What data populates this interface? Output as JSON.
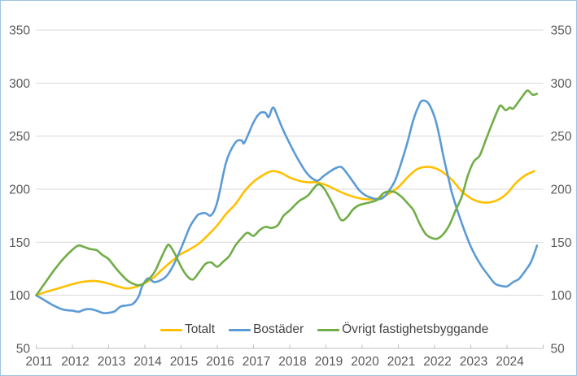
{
  "chart_data": {
    "type": "line",
    "title": "",
    "grid": true,
    "legend_position": "bottom",
    "y_axis": {
      "min": 50,
      "max": 350,
      "tick_step": 50,
      "ticks": [
        50,
        100,
        150,
        200,
        250,
        300,
        350
      ],
      "sides": [
        "left",
        "right"
      ]
    },
    "x_axis": {
      "start_year": 2011,
      "end_year": 2025,
      "tick_years": [
        2011,
        2012,
        2013,
        2014,
        2015,
        2016,
        2017,
        2018,
        2019,
        2020,
        2021,
        2022,
        2023,
        2024
      ]
    },
    "series": [
      {
        "name": "Totalt",
        "color": "#FFC000",
        "points": [
          [
            2011.0,
            100
          ],
          [
            2011.25,
            103
          ],
          [
            2011.5,
            105.5
          ],
          [
            2011.75,
            108
          ],
          [
            2012.0,
            110.5
          ],
          [
            2012.25,
            112.5
          ],
          [
            2012.5,
            113.5
          ],
          [
            2012.75,
            113
          ],
          [
            2013.0,
            111
          ],
          [
            2013.25,
            108.5
          ],
          [
            2013.5,
            106.5
          ],
          [
            2013.75,
            108
          ],
          [
            2014.0,
            111.5
          ],
          [
            2014.25,
            117
          ],
          [
            2014.5,
            125
          ],
          [
            2014.75,
            132.5
          ],
          [
            2015.0,
            139
          ],
          [
            2015.25,
            143.5
          ],
          [
            2015.5,
            149
          ],
          [
            2015.75,
            157
          ],
          [
            2016.0,
            166
          ],
          [
            2016.25,
            177
          ],
          [
            2016.5,
            186
          ],
          [
            2016.75,
            198
          ],
          [
            2017.0,
            207
          ],
          [
            2017.25,
            213
          ],
          [
            2017.5,
            217
          ],
          [
            2017.75,
            215.5
          ],
          [
            2018.0,
            211
          ],
          [
            2018.25,
            208
          ],
          [
            2018.5,
            206.5
          ],
          [
            2018.75,
            206.5
          ],
          [
            2019.0,
            204
          ],
          [
            2019.25,
            200
          ],
          [
            2019.5,
            196
          ],
          [
            2019.75,
            193
          ],
          [
            2020.0,
            191
          ],
          [
            2020.25,
            190.5
          ],
          [
            2020.5,
            192
          ],
          [
            2020.75,
            196
          ],
          [
            2021.0,
            202
          ],
          [
            2021.25,
            211
          ],
          [
            2021.5,
            218.5
          ],
          [
            2021.75,
            221
          ],
          [
            2022.0,
            220
          ],
          [
            2022.25,
            215.5
          ],
          [
            2022.5,
            208
          ],
          [
            2022.75,
            198
          ],
          [
            2023.0,
            191.5
          ],
          [
            2023.25,
            188
          ],
          [
            2023.5,
            187.5
          ],
          [
            2023.75,
            190
          ],
          [
            2024.0,
            196
          ],
          [
            2024.25,
            206
          ],
          [
            2024.5,
            213
          ],
          [
            2024.75,
            217
          ]
        ]
      },
      {
        "name": "Bostäder",
        "color": "#5B9BD5",
        "points": [
          [
            2011.0,
            100
          ],
          [
            2011.25,
            95
          ],
          [
            2011.5,
            90
          ],
          [
            2011.75,
            86.5
          ],
          [
            2012.0,
            85.5
          ],
          [
            2012.17,
            84.5
          ],
          [
            2012.33,
            86.5
          ],
          [
            2012.5,
            87
          ],
          [
            2012.67,
            85.5
          ],
          [
            2012.83,
            83.5
          ],
          [
            2013.0,
            83.5
          ],
          [
            2013.17,
            85
          ],
          [
            2013.33,
            89.5
          ],
          [
            2013.5,
            90.5
          ],
          [
            2013.67,
            92
          ],
          [
            2013.83,
            99
          ],
          [
            2013.92,
            108
          ],
          [
            2014.08,
            116
          ],
          [
            2014.25,
            112.5
          ],
          [
            2014.42,
            114
          ],
          [
            2014.58,
            117.5
          ],
          [
            2014.75,
            126
          ],
          [
            2014.92,
            138
          ],
          [
            2015.08,
            151
          ],
          [
            2015.25,
            165
          ],
          [
            2015.42,
            174
          ],
          [
            2015.5,
            176.5
          ],
          [
            2015.67,
            177.5
          ],
          [
            2015.83,
            175.5
          ],
          [
            2016.0,
            188
          ],
          [
            2016.25,
            226
          ],
          [
            2016.5,
            244
          ],
          [
            2016.67,
            246
          ],
          [
            2016.75,
            244
          ],
          [
            2017.0,
            263
          ],
          [
            2017.17,
            271.5
          ],
          [
            2017.33,
            272
          ],
          [
            2017.42,
            268
          ],
          [
            2017.54,
            277
          ],
          [
            2017.67,
            268
          ],
          [
            2017.79,
            258
          ],
          [
            2018.0,
            243
          ],
          [
            2018.25,
            227
          ],
          [
            2018.5,
            214
          ],
          [
            2018.75,
            208
          ],
          [
            2018.92,
            212
          ],
          [
            2019.08,
            216
          ],
          [
            2019.25,
            219.5
          ],
          [
            2019.42,
            221
          ],
          [
            2019.58,
            215
          ],
          [
            2019.75,
            207
          ],
          [
            2019.92,
            199
          ],
          [
            2020.08,
            194.5
          ],
          [
            2020.25,
            192
          ],
          [
            2020.42,
            190.5
          ],
          [
            2020.58,
            192
          ],
          [
            2020.75,
            199
          ],
          [
            2020.92,
            209
          ],
          [
            2021.08,
            225
          ],
          [
            2021.25,
            244
          ],
          [
            2021.42,
            266
          ],
          [
            2021.58,
            280
          ],
          [
            2021.67,
            283.5
          ],
          [
            2021.83,
            281
          ],
          [
            2022.0,
            268
          ],
          [
            2022.12,
            252
          ],
          [
            2022.25,
            230
          ],
          [
            2022.42,
            205
          ],
          [
            2022.5,
            194
          ],
          [
            2022.75,
            168
          ],
          [
            2023.0,
            146
          ],
          [
            2023.25,
            130
          ],
          [
            2023.5,
            118
          ],
          [
            2023.67,
            111
          ],
          [
            2023.83,
            109
          ],
          [
            2024.0,
            108.5
          ],
          [
            2024.17,
            112.5
          ],
          [
            2024.33,
            115.5
          ],
          [
            2024.5,
            123
          ],
          [
            2024.67,
            132
          ],
          [
            2024.83,
            147
          ]
        ]
      },
      {
        "name": "Övrigt fastighetsbyggande",
        "color": "#70AD47",
        "points": [
          [
            2011.0,
            100
          ],
          [
            2011.25,
            112
          ],
          [
            2011.5,
            124
          ],
          [
            2011.75,
            134.5
          ],
          [
            2012.0,
            143
          ],
          [
            2012.17,
            147
          ],
          [
            2012.33,
            145.5
          ],
          [
            2012.5,
            143.5
          ],
          [
            2012.67,
            142.5
          ],
          [
            2012.83,
            138
          ],
          [
            2013.0,
            134
          ],
          [
            2013.25,
            123.5
          ],
          [
            2013.5,
            114.5
          ],
          [
            2013.67,
            111
          ],
          [
            2013.83,
            109.5
          ],
          [
            2014.0,
            112
          ],
          [
            2014.25,
            121
          ],
          [
            2014.42,
            133
          ],
          [
            2014.58,
            144.5
          ],
          [
            2014.67,
            147.5
          ],
          [
            2014.83,
            139
          ],
          [
            2015.0,
            127
          ],
          [
            2015.17,
            118
          ],
          [
            2015.33,
            115
          ],
          [
            2015.5,
            122
          ],
          [
            2015.67,
            129.5
          ],
          [
            2015.83,
            131
          ],
          [
            2016.0,
            127
          ],
          [
            2016.17,
            132
          ],
          [
            2016.33,
            137
          ],
          [
            2016.5,
            147
          ],
          [
            2016.67,
            154
          ],
          [
            2016.83,
            159
          ],
          [
            2017.0,
            156
          ],
          [
            2017.17,
            161.5
          ],
          [
            2017.33,
            164.5
          ],
          [
            2017.5,
            163.5
          ],
          [
            2017.67,
            166
          ],
          [
            2017.83,
            175
          ],
          [
            2018.0,
            180
          ],
          [
            2018.25,
            188.5
          ],
          [
            2018.5,
            194
          ],
          [
            2018.75,
            204
          ],
          [
            2018.92,
            202
          ],
          [
            2019.08,
            193
          ],
          [
            2019.25,
            182
          ],
          [
            2019.42,
            171
          ],
          [
            2019.58,
            173.5
          ],
          [
            2019.75,
            181
          ],
          [
            2019.92,
            185
          ],
          [
            2020.08,
            186.5
          ],
          [
            2020.25,
            188
          ],
          [
            2020.42,
            190
          ],
          [
            2020.58,
            196
          ],
          [
            2020.75,
            198
          ],
          [
            2020.92,
            197
          ],
          [
            2021.08,
            193
          ],
          [
            2021.25,
            187
          ],
          [
            2021.42,
            180
          ],
          [
            2021.58,
            168
          ],
          [
            2021.75,
            158
          ],
          [
            2021.92,
            154
          ],
          [
            2022.08,
            153.5
          ],
          [
            2022.25,
            158
          ],
          [
            2022.42,
            167
          ],
          [
            2022.58,
            180
          ],
          [
            2022.75,
            193
          ],
          [
            2022.92,
            213
          ],
          [
            2023.08,
            226
          ],
          [
            2023.25,
            232
          ],
          [
            2023.42,
            247
          ],
          [
            2023.58,
            261
          ],
          [
            2023.75,
            275
          ],
          [
            2023.83,
            279
          ],
          [
            2023.96,
            274.5
          ],
          [
            2024.08,
            277
          ],
          [
            2024.17,
            276
          ],
          [
            2024.33,
            283
          ],
          [
            2024.5,
            291
          ],
          [
            2024.58,
            293
          ],
          [
            2024.71,
            289
          ],
          [
            2024.83,
            290
          ]
        ]
      }
    ],
    "colors": {
      "grid": "#D9D9D9",
      "axis_line": "#BFBFBF",
      "tick_label": "#595959",
      "legend_text": "#444444",
      "frame_border": "#9DC3E6",
      "background": "#FFFFFF"
    }
  }
}
